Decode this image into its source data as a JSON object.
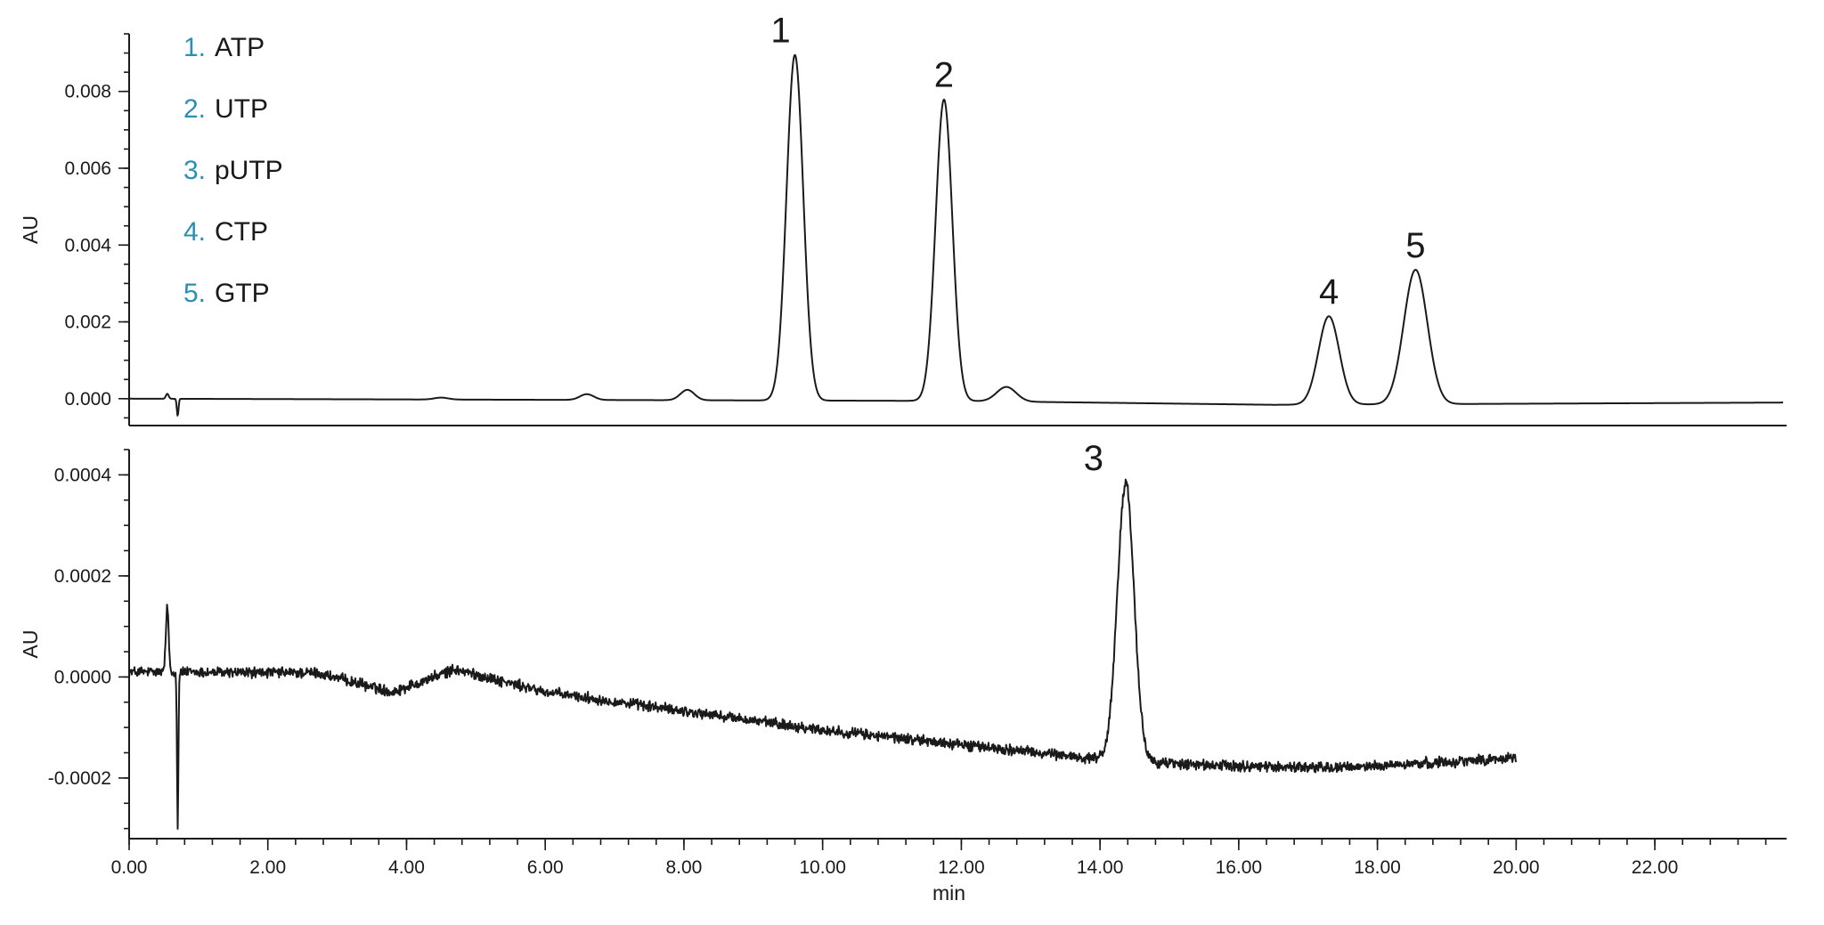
{
  "chart_data": [
    {
      "type": "line",
      "ylabel": "AU",
      "xlim": [
        0,
        23.9
      ],
      "ylim": [
        -0.0007,
        0.0095
      ],
      "yticks_labeled": [
        0.0,
        0.002,
        0.004,
        0.006,
        0.008
      ],
      "ytick_labels": [
        "0.000",
        "0.002",
        "0.004",
        "0.006",
        "0.008"
      ],
      "ytick_minor_step": 0.0005,
      "baseline": [
        [
          0,
          0.0
        ],
        [
          12,
          -6e-05
        ],
        [
          16.5,
          -0.00016
        ],
        [
          24,
          -0.0001
        ]
      ],
      "peaks": [
        {
          "label": "",
          "time": 0.55,
          "height": 0.00013,
          "width": 0.02
        },
        {
          "label": "",
          "time": 0.7,
          "height": -0.00045,
          "width": 0.012
        },
        {
          "label": "",
          "time": 4.5,
          "height": 5e-05,
          "width": 0.1
        },
        {
          "label": "",
          "time": 6.6,
          "height": 0.00015,
          "width": 0.1
        },
        {
          "label": "",
          "time": 8.05,
          "height": 0.00027,
          "width": 0.1
        },
        {
          "label": "1",
          "time": 9.6,
          "height": 0.009,
          "width": 0.12
        },
        {
          "label": "2",
          "time": 11.75,
          "height": 0.00785,
          "width": 0.12
        },
        {
          "label": "",
          "time": 12.65,
          "height": 0.00038,
          "width": 0.14
        },
        {
          "label": "4",
          "time": 17.3,
          "height": 0.0023,
          "width": 0.15
        },
        {
          "label": "5",
          "time": 18.55,
          "height": 0.0035,
          "width": 0.17
        }
      ],
      "legend": {
        "placement": "top-left",
        "entries": [
          {
            "number": "1.",
            "name": "ATP"
          },
          {
            "number": "2.",
            "name": "UTP"
          },
          {
            "number": "3.",
            "name": "pUTP"
          },
          {
            "number": "4.",
            "name": "CTP"
          },
          {
            "number": "5.",
            "name": "GTP"
          }
        ]
      }
    },
    {
      "type": "line",
      "ylabel": "AU",
      "xlabel": "min",
      "xlim": [
        0,
        23.9
      ],
      "ylim": [
        -0.00032,
        0.00045
      ],
      "x_end": 20.0,
      "yticks_labeled": [
        -0.0002,
        0.0,
        0.0002,
        0.0004
      ],
      "ytick_labels": [
        "-0.0002",
        "0.0000",
        "0.0002",
        "0.0004"
      ],
      "ytick_minor_step": 5e-05,
      "xticks": [
        0,
        2,
        4,
        6,
        8,
        10,
        12,
        14,
        16,
        18,
        20,
        22
      ],
      "xtick_labels": [
        "0.00",
        "2.00",
        "4.00",
        "6.00",
        "8.00",
        "10.00",
        "12.00",
        "14.00",
        "16.00",
        "18.00",
        "20.00",
        "22.00"
      ],
      "xtick_minor_step": 0.4,
      "baseline": [
        [
          0,
          1e-05
        ],
        [
          2.7,
          8e-06
        ],
        [
          3.8,
          -3e-05
        ],
        [
          4.7,
          1.5e-05
        ],
        [
          6,
          -3e-05
        ],
        [
          10,
          -0.000105
        ],
        [
          13.8,
          -0.00016
        ],
        [
          15.5,
          -0.000175
        ],
        [
          17.5,
          -0.00018
        ],
        [
          20,
          -0.00016
        ]
      ],
      "noise": 8e-06,
      "peaks": [
        {
          "label": "",
          "time": 0.55,
          "height": 0.00013,
          "width": 0.02
        },
        {
          "label": "",
          "time": 0.7,
          "height": -0.0003,
          "width": 0.01
        },
        {
          "label": "3",
          "time": 14.37,
          "height": 0.00055,
          "width": 0.12
        }
      ]
    }
  ],
  "colors": {
    "trace": "#1a1a1a",
    "legend_number": "#2a8fb3"
  }
}
